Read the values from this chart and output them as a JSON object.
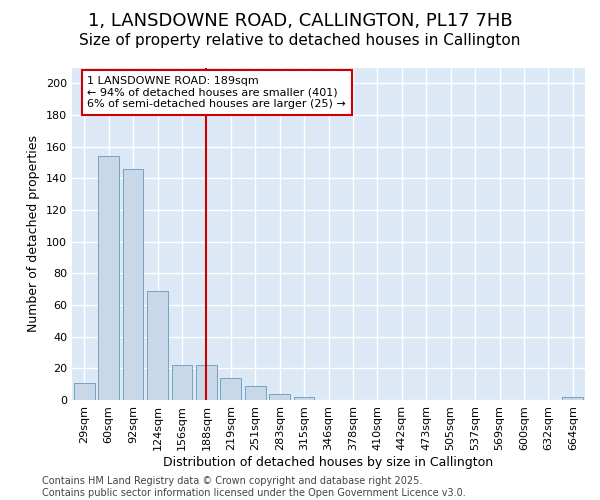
{
  "title": "1, LANSDOWNE ROAD, CALLINGTON, PL17 7HB",
  "subtitle": "Size of property relative to detached houses in Callington",
  "xlabel": "Distribution of detached houses by size in Callington",
  "ylabel": "Number of detached properties",
  "categories": [
    "29sqm",
    "60sqm",
    "92sqm",
    "124sqm",
    "156sqm",
    "188sqm",
    "219sqm",
    "251sqm",
    "283sqm",
    "315sqm",
    "346sqm",
    "378sqm",
    "410sqm",
    "442sqm",
    "473sqm",
    "505sqm",
    "537sqm",
    "569sqm",
    "600sqm",
    "632sqm",
    "664sqm"
  ],
  "values": [
    11,
    154,
    146,
    69,
    22,
    22,
    14,
    9,
    4,
    2,
    0,
    0,
    0,
    0,
    0,
    0,
    0,
    0,
    0,
    0,
    2
  ],
  "bar_color": "#c8d8e8",
  "bar_edge_color": "#6699bb",
  "vline_x_index": 5,
  "vline_color": "#cc0000",
  "annotation_line1": "1 LANSDOWNE ROAD: 189sqm",
  "annotation_line2": "← 94% of detached houses are smaller (401)",
  "annotation_line3": "6% of semi-detached houses are larger (25) →",
  "ylim_max": 210,
  "yticks": [
    0,
    20,
    40,
    60,
    80,
    100,
    120,
    140,
    160,
    180,
    200
  ],
  "plot_bg_color": "#dce8f5",
  "fig_bg_color": "#ffffff",
  "footer_text": "Contains HM Land Registry data © Crown copyright and database right 2025.\nContains public sector information licensed under the Open Government Licence v3.0.",
  "title_fontsize": 13,
  "subtitle_fontsize": 11,
  "xlabel_fontsize": 9,
  "ylabel_fontsize": 9,
  "tick_fontsize": 8,
  "annotation_fontsize": 8,
  "footer_fontsize": 7
}
